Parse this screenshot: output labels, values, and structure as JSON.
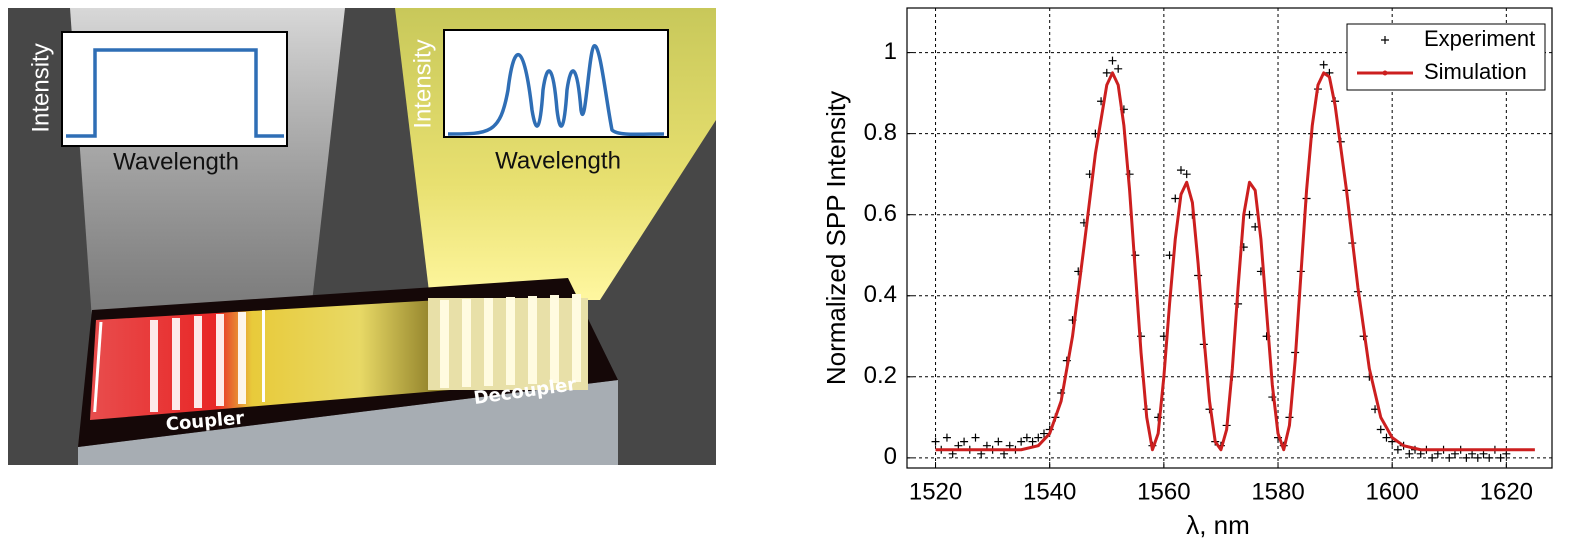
{
  "illustration": {
    "left_inset": {
      "y_label": "Intensity",
      "x_label": "Wavelength"
    },
    "right_inset": {
      "y_label": "Intensity",
      "x_label": "Wavelength"
    },
    "labels": {
      "coupler": "Coupler",
      "decoupler": "Decoupler"
    }
  },
  "chart_data": {
    "type": "line",
    "x_label": "λ, nm",
    "y_label": "Normalized SPP Intensity",
    "xlim": [
      1515,
      1628
    ],
    "ylim": [
      -0.025,
      1.11
    ],
    "xticks": [
      1520,
      1540,
      1560,
      1580,
      1600,
      1620
    ],
    "yticks": [
      0,
      0.2,
      0.4,
      0.6,
      0.8,
      1
    ],
    "grid": true,
    "legend": "upper-right",
    "series": [
      {
        "name": "Experiment",
        "color": "#000000",
        "marker": "+",
        "x": [
          1520,
          1521,
          1522,
          1523,
          1524,
          1525,
          1526,
          1527,
          1528,
          1529,
          1530,
          1531,
          1532,
          1533,
          1534,
          1535,
          1536,
          1537,
          1538,
          1539,
          1540,
          1541,
          1542,
          1543,
          1544,
          1545,
          1546,
          1547,
          1548,
          1549,
          1550,
          1551,
          1552,
          1553,
          1554,
          1555,
          1556,
          1557,
          1558,
          1559,
          1560,
          1561,
          1562,
          1563,
          1564,
          1565,
          1566,
          1567,
          1568,
          1569,
          1570,
          1571,
          1572,
          1573,
          1574,
          1575,
          1576,
          1577,
          1578,
          1579,
          1580,
          1581,
          1582,
          1583,
          1584,
          1585,
          1586,
          1587,
          1588,
          1589,
          1590,
          1591,
          1592,
          1593,
          1594,
          1595,
          1596,
          1597,
          1598,
          1599,
          1600,
          1601,
          1602,
          1603,
          1604,
          1605,
          1606,
          1607,
          1608,
          1609,
          1610,
          1611,
          1612,
          1613,
          1614,
          1615,
          1616,
          1617,
          1618,
          1619,
          1620
        ],
        "values": [
          0.04,
          0.02,
          0.05,
          0.01,
          0.03,
          0.04,
          0.02,
          0.05,
          0.01,
          0.03,
          0.02,
          0.04,
          0.01,
          0.03,
          0.02,
          0.04,
          0.05,
          0.04,
          0.05,
          0.06,
          0.07,
          0.1,
          0.16,
          0.24,
          0.34,
          0.46,
          0.58,
          0.7,
          0.8,
          0.88,
          0.95,
          0.98,
          0.96,
          0.86,
          0.7,
          0.5,
          0.3,
          0.12,
          0.03,
          0.1,
          0.3,
          0.5,
          0.64,
          0.71,
          0.7,
          0.6,
          0.45,
          0.28,
          0.12,
          0.04,
          0.03,
          0.08,
          0.2,
          0.38,
          0.52,
          0.6,
          0.57,
          0.46,
          0.3,
          0.15,
          0.05,
          0.03,
          0.1,
          0.26,
          0.46,
          0.64,
          0.8,
          0.91,
          0.97,
          0.95,
          0.88,
          0.78,
          0.66,
          0.53,
          0.41,
          0.3,
          0.2,
          0.12,
          0.07,
          0.05,
          0.04,
          0.02,
          0.03,
          0.01,
          0.02,
          0.01,
          0.02,
          0,
          0.01,
          0.02,
          0,
          0.01,
          0.02,
          0,
          0.01,
          0,
          0.01,
          0,
          0.02,
          0,
          0.01
        ]
      },
      {
        "name": "Simulation",
        "color": "#cc1f1f",
        "marker": "line",
        "x": [
          1520,
          1530,
          1535,
          1538,
          1540,
          1542,
          1544,
          1546,
          1548,
          1550,
          1551,
          1552,
          1553,
          1554,
          1555,
          1556,
          1557,
          1558,
          1559,
          1560,
          1561,
          1562,
          1563,
          1564,
          1565,
          1566,
          1567,
          1568,
          1569,
          1570,
          1571,
          1572,
          1573,
          1574,
          1575,
          1576,
          1577,
          1578,
          1579,
          1580,
          1581,
          1582,
          1583,
          1584,
          1585,
          1586,
          1587,
          1588,
          1589,
          1590,
          1592,
          1594,
          1596,
          1598,
          1600,
          1602,
          1605,
          1615,
          1625
        ],
        "values": [
          0.02,
          0.02,
          0.02,
          0.03,
          0.06,
          0.14,
          0.3,
          0.52,
          0.75,
          0.92,
          0.95,
          0.92,
          0.82,
          0.66,
          0.46,
          0.26,
          0.1,
          0.02,
          0.06,
          0.2,
          0.38,
          0.54,
          0.65,
          0.68,
          0.63,
          0.48,
          0.3,
          0.14,
          0.04,
          0.02,
          0.07,
          0.22,
          0.42,
          0.6,
          0.68,
          0.66,
          0.54,
          0.36,
          0.18,
          0.06,
          0.02,
          0.08,
          0.24,
          0.45,
          0.66,
          0.82,
          0.92,
          0.95,
          0.94,
          0.87,
          0.66,
          0.42,
          0.22,
          0.1,
          0.05,
          0.03,
          0.02,
          0.02,
          0.02
        ]
      }
    ]
  }
}
